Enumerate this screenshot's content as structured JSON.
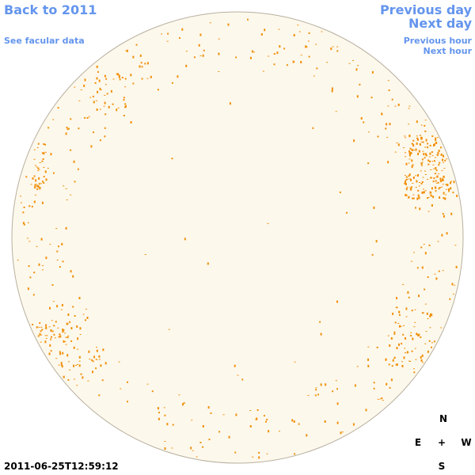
{
  "links": {
    "back": "Back to 2011",
    "facular": "See facular data",
    "previous_day": "Previous day",
    "next_day": "Next day",
    "previous_hour": "Previous hour",
    "next_hour": "Next hour"
  },
  "timestamp": "2011-06-25T12:59:12",
  "compass": {
    "north": "N",
    "east": "E",
    "center": "+",
    "west": "W",
    "south": "S"
  }
}
